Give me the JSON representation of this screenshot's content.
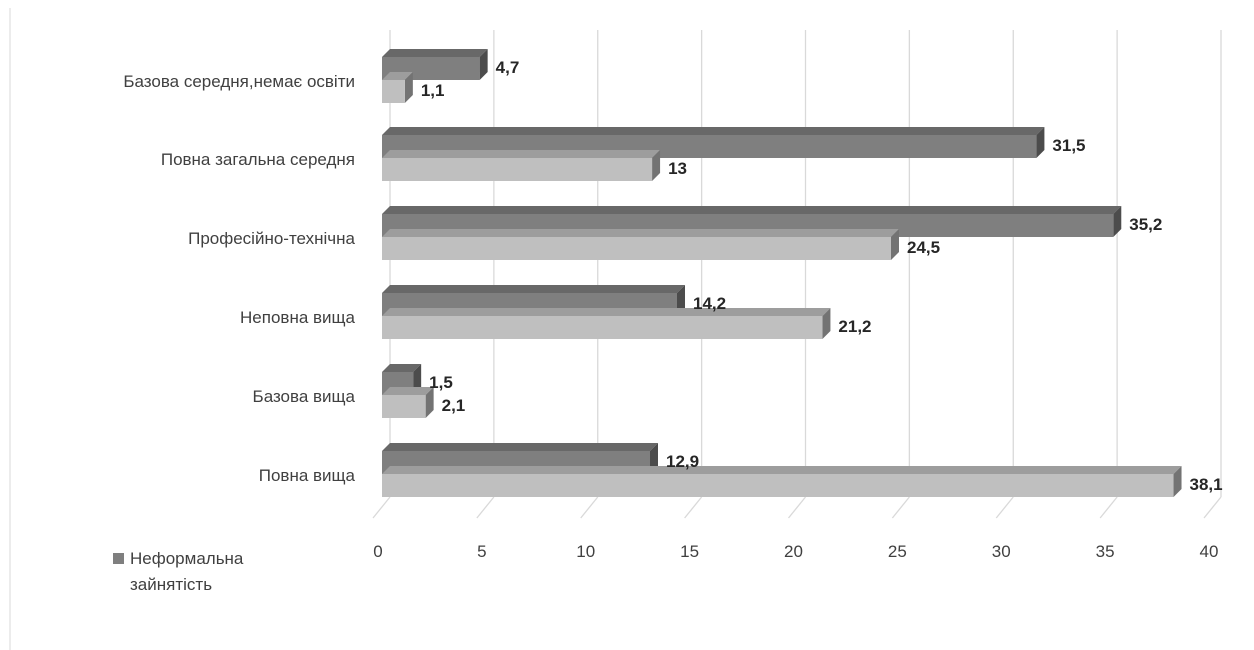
{
  "chart_data": {
    "type": "bar",
    "orientation": "horizontal",
    "categories": [
      "Базова середня,немає освіти",
      "Повна загальна середня",
      "Професійно-технічна",
      "Неповна вища",
      "Базова вища",
      "Повна вища"
    ],
    "series": [
      {
        "name": "Неформальна зайнятість",
        "values": [
          "4,7",
          "31,5",
          "35,2",
          "14,2",
          "1,5",
          "12,9"
        ],
        "color": "#7f7f7f"
      },
      {
        "values": [
          "1,1",
          "13",
          "24,5",
          "21,2",
          "2,1",
          "38,1"
        ],
        "color": "#bfbfbf"
      }
    ],
    "xlim": [
      0,
      40
    ],
    "xticks": [
      "0",
      "5",
      "10",
      "15",
      "20",
      "25",
      "30",
      "35",
      "40"
    ],
    "grid": true,
    "legend_position": "bottom-left"
  }
}
